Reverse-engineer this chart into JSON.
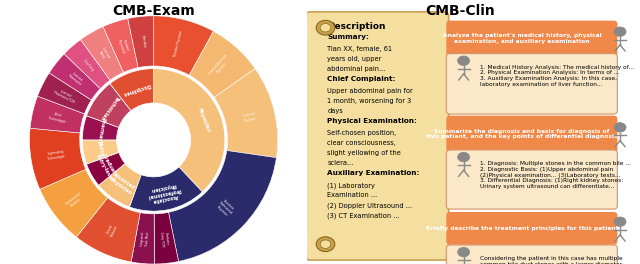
{
  "title_left": "CMB-Exam",
  "title_right": "CMB-Clin",
  "title_fontsize": 10,
  "inner_segments": [
    {
      "label": "Physician",
      "value": 0.38,
      "color": "#F5C07A"
    },
    {
      "label": "Associate\nProfessional\nPhysician",
      "value": 0.175,
      "color": "#2B2B6B"
    },
    {
      "label": "Licensed\nPhysician",
      "value": 0.085,
      "color": "#F5C07A"
    },
    {
      "label": "Graduate\nEntry-level",
      "value": 0.055,
      "color": "#8B0040"
    },
    {
      "label": "Nurse",
      "value": 0.055,
      "color": "#FDCB8A"
    },
    {
      "label": "Pharmacy",
      "value": 0.055,
      "color": "#9B1050"
    },
    {
      "label": "Technician",
      "value": 0.09,
      "color": "#C04060"
    },
    {
      "label": "Disciplines",
      "value": 0.105,
      "color": "#E05030"
    }
  ],
  "outer_segments": [
    {
      "label": "Resident Physician",
      "value": 0.072,
      "color": "#E85030"
    },
    {
      "label": "Licensed Assistant\nPhysician",
      "value": 0.065,
      "color": "#F5B870"
    },
    {
      "label": "Licensed\nPhysician",
      "value": 0.108,
      "color": "#F5C07A"
    },
    {
      "label": "Associate\nProfessional\nPhysician",
      "value": 0.175,
      "color": "#2B2B6B"
    },
    {
      "label": "Graduate\nEntry TCM",
      "value": 0.028,
      "color": "#7B0040"
    },
    {
      "label": "Integrated\nTrad. Med.",
      "value": 0.027,
      "color": "#8B1050"
    },
    {
      "label": "Clinical\nMedicine",
      "value": 0.07,
      "color": "#E05030"
    },
    {
      "label": "Fundamental\nMedicine",
      "value": 0.07,
      "color": "#F5A040"
    },
    {
      "label": "Supervising\nTechnologist",
      "value": 0.072,
      "color": "#E04020"
    },
    {
      "label": "Allied\nTechnologist",
      "value": 0.038,
      "color": "#C03060"
    },
    {
      "label": "Licensed\nPharmacist TCM",
      "value": 0.03,
      "color": "#A02050"
    },
    {
      "label": "Licensed\nPharmacist",
      "value": 0.028,
      "color": "#C03070"
    },
    {
      "label": "Chui Fang",
      "value": 0.025,
      "color": "#E05080"
    },
    {
      "label": "Licensed\nNurse",
      "value": 0.03,
      "color": "#F08080"
    },
    {
      "label": "Resident\nPhysician2",
      "value": 0.03,
      "color": "#F06060"
    },
    {
      "label": "Specialist",
      "value": 0.03,
      "color": "#D04040"
    }
  ],
  "scroll_color": "#F5DFA0",
  "scroll_border": "#C8A050",
  "orange_box_color": "#F0884A",
  "answer_box_color": "#FAE8C8",
  "answer_box_border": "#D4956A",
  "q1_text": "Analyze the patient's medical history, physical\nexamination, and auxiliary examination",
  "a1_text": "1. Medical History Analysis: The medical history of...\n2. Physical Examination Analysis: In terms of ...\n3. Auxiliary Examination Analysis: In this case,\nlaboratory examination of liver function...",
  "q2_text": "Summarize the diagnosis and basis for diagnosis of\nthis patient, and the key points of differential diagnosis",
  "a2_text": "1. Diagnosis: Multiple stones in the common bile ...\n2. Diagnostic Basis: (1)Upper abdominal pain\n(2)Physical examination... (3)Laboratory tests...\n3. Differential Diagnosis: (1)Right kidney stones:\nUrinary system ultrasound can differentiate...",
  "q3_text": "Briefly describe the treatment principles for this patient",
  "a3_text": "Considering the patient in this case has multiple\ncommon bile duct stones with a larger diameter,\nsurgical treatment is chosen. During the surgery, it is\nnecessary to remove all the stones as much as possible\nto relieve the biliary obstruction, and postoperatively\nmaintain the smooth drainage of bile...."
}
